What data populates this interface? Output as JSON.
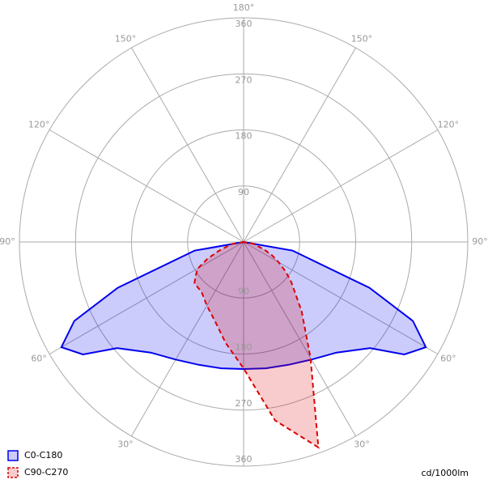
{
  "chart_data": {
    "type": "polar",
    "unit_label": "cd/1000lm",
    "x": [
      -90,
      -80,
      -70,
      -65,
      -60,
      -55,
      -50,
      -40,
      -30,
      -20,
      -10,
      0,
      10,
      20,
      30,
      40,
      50,
      55,
      60,
      65,
      70,
      80,
      90
    ],
    "series": [
      {
        "name": "C0-C180",
        "color": "#0000ee",
        "dashed": false,
        "values": [
          0,
          80,
          215,
          300,
          338,
          315,
          265,
          232,
          218,
          210,
          206,
          204,
          206,
          210,
          218,
          232,
          265,
          315,
          338,
          300,
          215,
          80,
          0
        ]
      },
      {
        "name": "C90-C270",
        "color": "#dd0000",
        "dashed": true,
        "values": [
          0,
          20,
          43,
          64,
          85,
          94,
          103,
          105,
          118,
          135,
          165,
          203,
          291,
          351,
          215,
          145,
          100,
          82,
          65,
          50,
          35,
          15,
          0
        ]
      }
    ],
    "rlim": [
      0,
      360
    ],
    "rticks": [
      90,
      180,
      270,
      360
    ],
    "angle_ticks": [
      {
        "value": -150,
        "label": "150°"
      },
      {
        "value": -120,
        "label": "120°"
      },
      {
        "value": -90,
        "label": "90°"
      },
      {
        "value": -60,
        "label": "60°"
      },
      {
        "value": -30,
        "label": "30°"
      },
      {
        "value": 30,
        "label": "30°"
      },
      {
        "value": 60,
        "label": "60°"
      },
      {
        "value": 90,
        "label": "90°"
      },
      {
        "value": 120,
        "label": "120°"
      },
      {
        "value": 150,
        "label": "150°"
      },
      {
        "value": 180,
        "label": "180°"
      }
    ],
    "legend": "bottom-left"
  }
}
